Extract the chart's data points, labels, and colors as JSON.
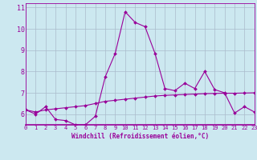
{
  "xlabel": "Windchill (Refroidissement éolien,°C)",
  "bg_color": "#cce8f0",
  "line_color": "#990099",
  "grid_color": "#aabbcc",
  "x_data": [
    0,
    1,
    2,
    3,
    4,
    5,
    6,
    7,
    8,
    9,
    10,
    11,
    12,
    13,
    14,
    15,
    16,
    17,
    18,
    19,
    20,
    21,
    22,
    23
  ],
  "y1_data": [
    6.2,
    6.0,
    6.35,
    5.75,
    5.7,
    5.5,
    5.5,
    5.9,
    7.75,
    8.85,
    10.8,
    10.3,
    10.1,
    8.85,
    7.2,
    7.1,
    7.45,
    7.2,
    8.0,
    7.15,
    7.0,
    6.05,
    6.35,
    6.1
  ],
  "y2_data": [
    6.2,
    6.1,
    6.2,
    6.25,
    6.3,
    6.35,
    6.4,
    6.5,
    6.6,
    6.65,
    6.7,
    6.75,
    6.8,
    6.85,
    6.88,
    6.9,
    6.92,
    6.94,
    6.96,
    6.97,
    6.98,
    6.98,
    6.99,
    7.0
  ],
  "ylim": [
    5.5,
    11.2
  ],
  "yticks": [
    6,
    7,
    8,
    9,
    10,
    11
  ],
  "xlim": [
    0,
    23
  ],
  "xticks": [
    0,
    1,
    2,
    3,
    4,
    5,
    6,
    7,
    8,
    9,
    10,
    11,
    12,
    13,
    14,
    15,
    16,
    17,
    18,
    19,
    20,
    21,
    22,
    23
  ]
}
